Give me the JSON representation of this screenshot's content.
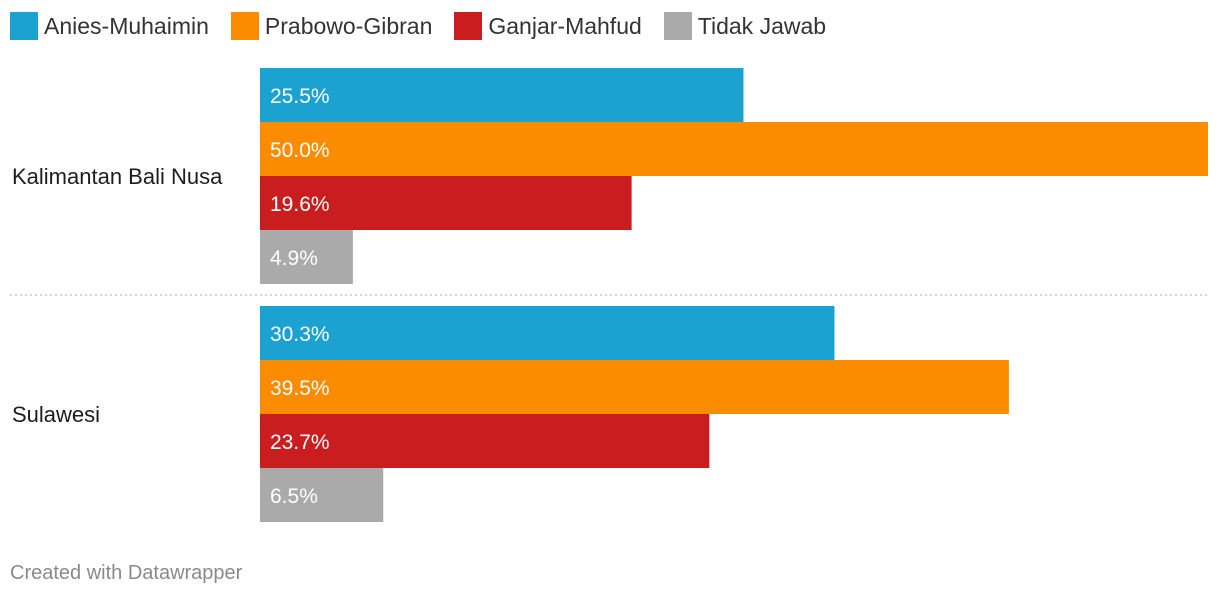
{
  "chart_data": {
    "type": "bar",
    "orientation": "horizontal",
    "categories": [
      "Kalimantan Bali Nusa",
      "Sulawesi"
    ],
    "series": [
      {
        "name": "Anies-Muhaimin",
        "color": "#1ba2d1",
        "values": [
          25.5,
          30.3
        ],
        "labels": [
          "25.5%",
          "30.3%"
        ]
      },
      {
        "name": "Prabowo-Gibran",
        "color": "#fb8c00",
        "values": [
          50.0,
          39.5
        ],
        "labels": [
          "50.0%",
          "39.5%"
        ]
      },
      {
        "name": "Ganjar-Mahfud",
        "color": "#c91d1f",
        "values": [
          19.6,
          23.7
        ],
        "labels": [
          "19.6%",
          "23.7%"
        ]
      },
      {
        "name": "Tidak Jawab",
        "color": "#aaaaaa",
        "values": [
          4.9,
          6.5
        ],
        "labels": [
          "4.9%",
          "6.5%"
        ]
      }
    ],
    "xlim": [
      0,
      50
    ],
    "legend_position": "top-left",
    "grid": false
  },
  "footer": {
    "credit": "Created with Datawrapper"
  }
}
